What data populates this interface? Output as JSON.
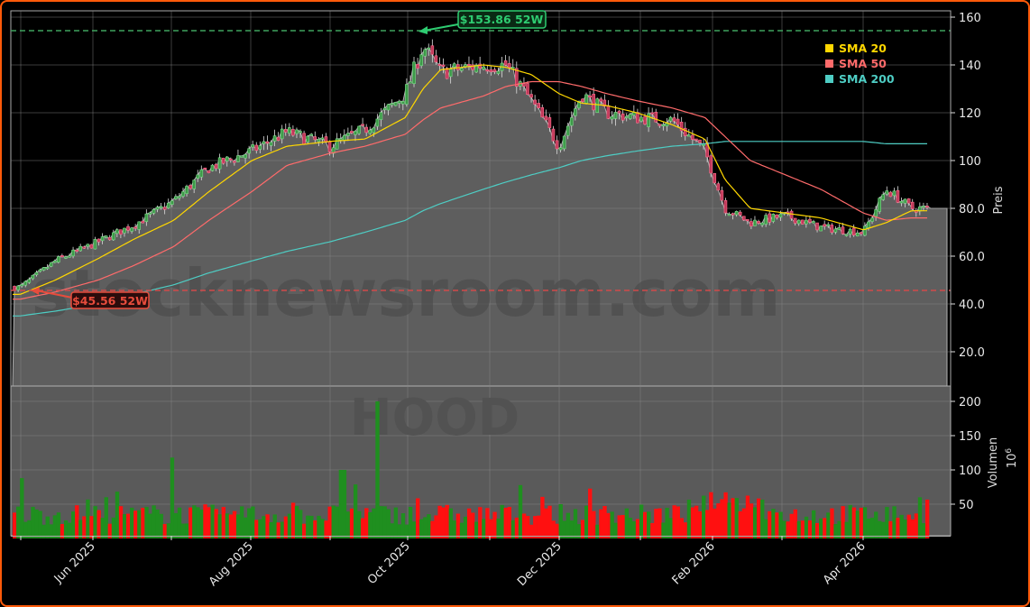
{
  "chart_data": {
    "type": "candlestick",
    "ticker": "HOOD",
    "watermark": "stocknewsroom.com",
    "period": "May 2025 – Apr 2026",
    "price_panel": {
      "ylabel": "Preis",
      "ylim": [
        8,
        163
      ],
      "yticks": [
        "20.0",
        "40.0",
        "60.0",
        "80.0",
        "100",
        "120",
        "140",
        "160"
      ],
      "grid": true
    },
    "volume_panel": {
      "ylabel": "Volumen",
      "yscale_label": "10",
      "yscale_exp": "6",
      "ylim": [
        0,
        225
      ],
      "yticks": [
        "50",
        "100",
        "150",
        "200"
      ]
    },
    "x_ticks": [
      "Jun 2025",
      "Aug 2025",
      "Oct 2025",
      "Dec 2025",
      "Feb 2026",
      "Apr 2026"
    ],
    "legend": [
      {
        "label": "SMA 20",
        "color": "#ffd700"
      },
      {
        "label": "SMA 50",
        "color": "#ff6b6b"
      },
      {
        "label": "SMA 200",
        "color": "#4ecdc4"
      }
    ],
    "annotations": {
      "high_52w": {
        "label": "$153.86 52W",
        "value": 153.86,
        "color": "#2ecc71"
      },
      "low_52w": {
        "label": "$45.56 52W",
        "value": 45.56,
        "color": "#e74c3c"
      }
    },
    "close_approx": {
      "x": [
        "2025-05-01",
        "2025-05-15",
        "2025-06-01",
        "2025-06-15",
        "2025-07-01",
        "2025-07-15",
        "2025-08-01",
        "2025-08-15",
        "2025-09-01",
        "2025-09-15",
        "2025-10-01",
        "2025-10-08",
        "2025-10-15",
        "2025-11-01",
        "2025-11-10",
        "2025-11-20",
        "2025-12-01",
        "2025-12-10",
        "2025-12-20",
        "2026-01-01",
        "2026-01-15",
        "2026-01-28",
        "2026-02-05",
        "2026-02-15",
        "2026-03-01",
        "2026-03-15",
        "2026-04-01",
        "2026-04-10",
        "2026-04-20"
      ],
      "close": [
        47,
        58,
        66,
        73,
        83,
        97,
        104,
        112,
        106,
        113,
        128,
        148,
        137,
        140,
        140,
        125,
        106,
        128,
        120,
        118,
        117,
        104,
        80,
        74,
        77,
        72,
        70,
        88,
        80
      ]
    },
    "sma20_approx": [
      44,
      50,
      59,
      67,
      75,
      87,
      100,
      106,
      108,
      109,
      118,
      130,
      138,
      140,
      139,
      136,
      128,
      124,
      123,
      120,
      115,
      109,
      92,
      80,
      78,
      76,
      71,
      74,
      79
    ],
    "sma50_approx": [
      42,
      45,
      50,
      56,
      64,
      75,
      87,
      98,
      103,
      106,
      111,
      117,
      122,
      127,
      131,
      133,
      133,
      131,
      128,
      125,
      122,
      118,
      110,
      100,
      94,
      88,
      78,
      75,
      76
    ],
    "sma200_approx": [
      35,
      37,
      40,
      44,
      48,
      53,
      58,
      62,
      66,
      70,
      75,
      79,
      82,
      88,
      91,
      94,
      97,
      100,
      102,
      104,
      106,
      107,
      108,
      108,
      108,
      108,
      108,
      107,
      107
    ],
    "volume_peak_m": 200,
    "volume_typical_m": [
      20,
      60
    ]
  }
}
